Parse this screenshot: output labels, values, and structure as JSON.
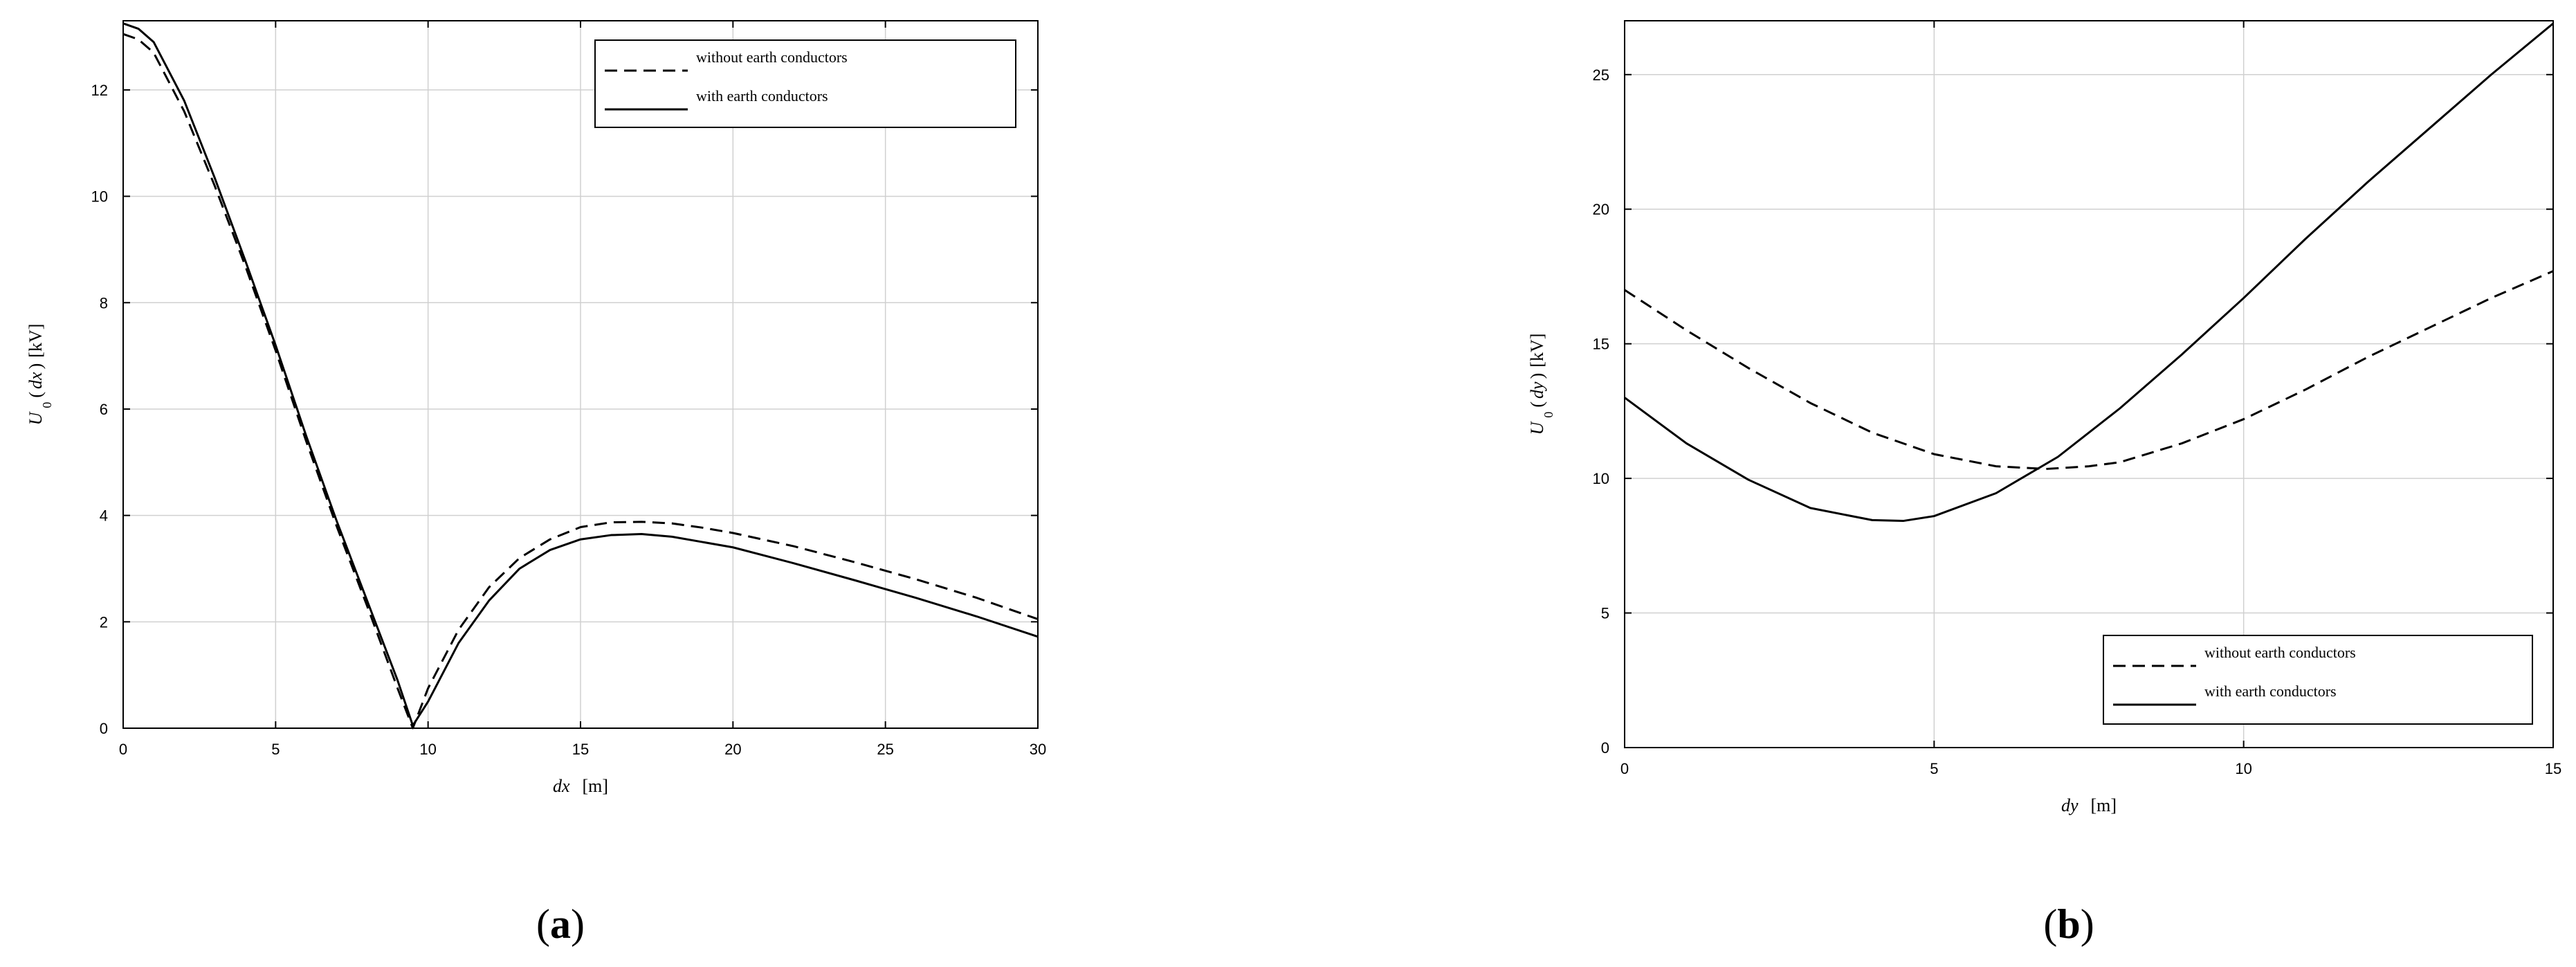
{
  "chart_data": [
    {
      "type": "line",
      "panel_label": "a",
      "xlabel": "dx",
      "xunit": "[m]",
      "ylabel_symbol": "U",
      "ylabel_sub": "0",
      "ylabel_arg": "dx",
      "ylabel_unit": "[kV]",
      "xlim": [
        0,
        30
      ],
      "ylim": [
        0,
        13.3
      ],
      "xticks": [
        0,
        5,
        10,
        15,
        20,
        25,
        30
      ],
      "yticks": [
        0,
        2,
        4,
        6,
        8,
        10,
        12
      ],
      "grid": true,
      "legend_position": "top-right",
      "series": [
        {
          "name": "without earth conductors",
          "style": "dashed",
          "x": [
            0,
            0.5,
            1,
            2,
            3,
            4,
            5,
            6,
            7,
            8,
            9,
            9.5,
            10,
            11,
            12,
            13,
            14,
            15,
            16,
            17,
            18,
            19,
            20,
            22,
            24,
            26,
            28,
            30
          ],
          "y": [
            13.05,
            12.95,
            12.7,
            11.6,
            10.2,
            8.7,
            7.1,
            5.4,
            3.8,
            2.3,
            0.75,
            0.0,
            0.75,
            1.85,
            2.65,
            3.2,
            3.55,
            3.78,
            3.87,
            3.88,
            3.85,
            3.77,
            3.67,
            3.42,
            3.12,
            2.8,
            2.45,
            2.05
          ]
        },
        {
          "name": "with earth conductors",
          "style": "solid",
          "x": [
            0,
            0.5,
            1,
            2,
            3,
            4,
            5,
            6,
            7,
            8,
            9,
            9.5,
            10,
            11,
            12,
            13,
            14,
            15,
            16,
            17,
            18,
            19,
            20,
            22,
            24,
            26,
            28,
            30
          ],
          "y": [
            13.25,
            13.15,
            12.9,
            11.8,
            10.35,
            8.8,
            7.2,
            5.5,
            3.9,
            2.4,
            0.9,
            0.05,
            0.5,
            1.6,
            2.4,
            3.0,
            3.35,
            3.55,
            3.63,
            3.65,
            3.6,
            3.5,
            3.4,
            3.1,
            2.78,
            2.45,
            2.1,
            1.72
          ]
        }
      ]
    },
    {
      "type": "line",
      "panel_label": "b",
      "xlabel": "dy",
      "xunit": "[m]",
      "ylabel_symbol": "U",
      "ylabel_sub": "0",
      "ylabel_arg": "dy",
      "ylabel_unit": "[kV]",
      "xlim": [
        0,
        15
      ],
      "ylim": [
        0,
        27
      ],
      "xticks": [
        0,
        5,
        10,
        15
      ],
      "yticks": [
        0,
        5,
        10,
        15,
        20,
        25
      ],
      "grid": true,
      "legend_position": "bottom-right",
      "series": [
        {
          "name": "without earth conductors",
          "style": "dashed",
          "x": [
            0,
            1,
            2,
            3,
            4,
            5,
            6,
            6.8,
            7.5,
            8,
            9,
            10,
            11,
            12,
            13,
            14,
            15
          ],
          "y": [
            17.0,
            15.5,
            14.1,
            12.8,
            11.7,
            10.9,
            10.45,
            10.35,
            10.45,
            10.6,
            11.3,
            12.2,
            13.3,
            14.5,
            15.6,
            16.7,
            17.7
          ]
        },
        {
          "name": "with earth conductors",
          "style": "solid",
          "x": [
            0,
            1,
            2,
            3,
            4,
            4.5,
            5,
            6,
            7,
            8,
            9,
            10,
            11,
            12,
            13,
            14,
            15
          ],
          "y": [
            13.0,
            11.3,
            9.95,
            8.9,
            8.45,
            8.42,
            8.6,
            9.45,
            10.8,
            12.6,
            14.6,
            16.7,
            18.9,
            21.0,
            23.0,
            25.0,
            26.9
          ]
        }
      ]
    }
  ]
}
